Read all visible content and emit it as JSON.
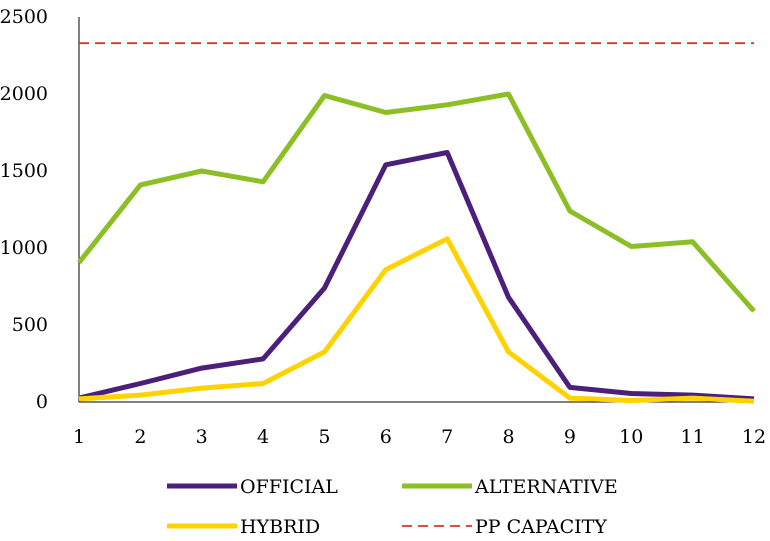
{
  "chart_data": {
    "type": "line",
    "title": "",
    "xlabel": "",
    "ylabel": "",
    "x": [
      1,
      2,
      3,
      4,
      5,
      6,
      7,
      8,
      9,
      10,
      11,
      12
    ],
    "ylim": [
      0,
      2500
    ],
    "yticks": [
      0,
      500,
      1000,
      1500,
      2000,
      2500
    ],
    "grid": false,
    "legend_position": "bottom",
    "series": [
      {
        "name": "OFFICIAL",
        "color": "#4b1f7a",
        "style": "solid",
        "values": [
          25,
          120,
          220,
          280,
          740,
          1540,
          1620,
          680,
          95,
          55,
          45,
          20
        ]
      },
      {
        "name": "ALTERNATIVE",
        "color": "#8cbf26",
        "style": "solid",
        "values": [
          905,
          1410,
          1500,
          1430,
          1990,
          1880,
          1930,
          2000,
          1240,
          1010,
          1040,
          590
        ]
      },
      {
        "name": "HYBRID",
        "color": "#ffd200",
        "style": "solid",
        "values": [
          20,
          45,
          90,
          120,
          325,
          860,
          1060,
          325,
          25,
          10,
          25,
          5
        ]
      },
      {
        "name": "PP CAPACITY",
        "color": "#d9342b",
        "style": "dashed",
        "values": [
          2330,
          2330,
          2330,
          2330,
          2330,
          2330,
          2330,
          2330,
          2330,
          2330,
          2330,
          2330
        ]
      }
    ]
  }
}
